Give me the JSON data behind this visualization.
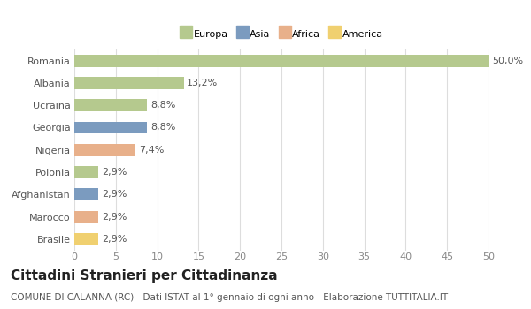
{
  "categories": [
    "Romania",
    "Albania",
    "Ucraina",
    "Georgia",
    "Nigeria",
    "Polonia",
    "Afghanistan",
    "Marocco",
    "Brasile"
  ],
  "values": [
    50.0,
    13.2,
    8.8,
    8.8,
    7.4,
    2.9,
    2.9,
    2.9,
    2.9
  ],
  "labels": [
    "50,0%",
    "13,2%",
    "8,8%",
    "8,8%",
    "7,4%",
    "2,9%",
    "2,9%",
    "2,9%",
    "2,9%"
  ],
  "colors": [
    "#b5c98e",
    "#b5c98e",
    "#b5c98e",
    "#7b9bbf",
    "#e8b08a",
    "#b5c98e",
    "#7b9bbf",
    "#e8b08a",
    "#f0d070"
  ],
  "legend_labels": [
    "Europa",
    "Asia",
    "Africa",
    "America"
  ],
  "legend_colors": [
    "#b5c98e",
    "#7b9bbf",
    "#e8b08a",
    "#f0d070"
  ],
  "title": "Cittadini Stranieri per Cittadinanza",
  "subtitle": "COMUNE DI CALANNA (RC) - Dati ISTAT al 1° gennaio di ogni anno - Elaborazione TUTTITALIA.IT",
  "xlim": [
    0,
    50
  ],
  "xticks": [
    0,
    5,
    10,
    15,
    20,
    25,
    30,
    35,
    40,
    45,
    50
  ],
  "background_color": "#ffffff",
  "grid_color": "#dddddd",
  "bar_height": 0.55,
  "title_fontsize": 11,
  "subtitle_fontsize": 7.5,
  "label_fontsize": 8,
  "tick_fontsize": 8
}
